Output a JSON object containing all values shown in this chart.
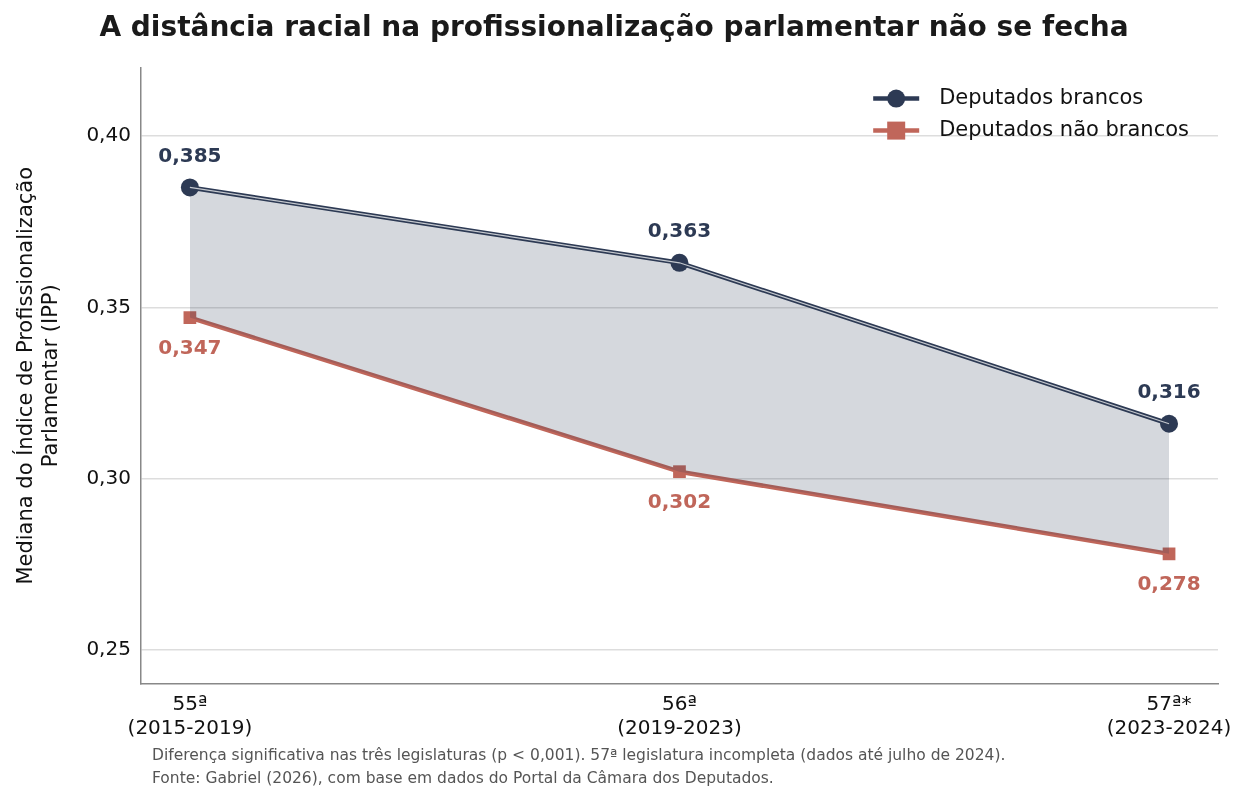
{
  "chart_data": {
    "type": "line",
    "title": "A distância racial na profissionalização parlamentar não se fecha",
    "ylabel": "Mediana do Índice de Profissionalização\nParlamentar (IPP)",
    "categories": [
      "55ª\n(2015-2019)",
      "56ª\n(2019-2023)",
      "57ª*\n(2023-2024)"
    ],
    "series": [
      {
        "name": "Deputados brancos",
        "color": "#2d3a54",
        "marker": "circle",
        "values": [
          0.385,
          0.363,
          0.316
        ],
        "value_labels": [
          "0,385",
          "0,363",
          "0,316"
        ],
        "lower": [
          0.347,
          0.302,
          0.278
        ],
        "upper": [
          0.385,
          0.363,
          0.316
        ]
      },
      {
        "name": "Deputados não brancos",
        "color": "#c0665a",
        "marker": "square",
        "values": [
          0.347,
          0.302,
          0.278
        ],
        "value_labels": [
          "0,347",
          "0,302",
          "0,278"
        ]
      }
    ],
    "ylim": [
      0.24,
      0.42
    ],
    "yticks": [
      {
        "value": 0.25,
        "label": "0,25"
      },
      {
        "value": 0.3,
        "label": "0,30"
      },
      {
        "value": 0.35,
        "label": "0,35"
      },
      {
        "value": 0.4,
        "label": "0,40"
      }
    ],
    "grid": "y",
    "legend": "top right",
    "annotations": [
      "Diferença significativa nas três legislaturas (p < 0,001). 57ª legislatura incompleta (dados até julho de 2024).",
      "Fonte: Gabriel (2026), com base em dados do Portal da Câmara dos Deputados."
    ]
  }
}
